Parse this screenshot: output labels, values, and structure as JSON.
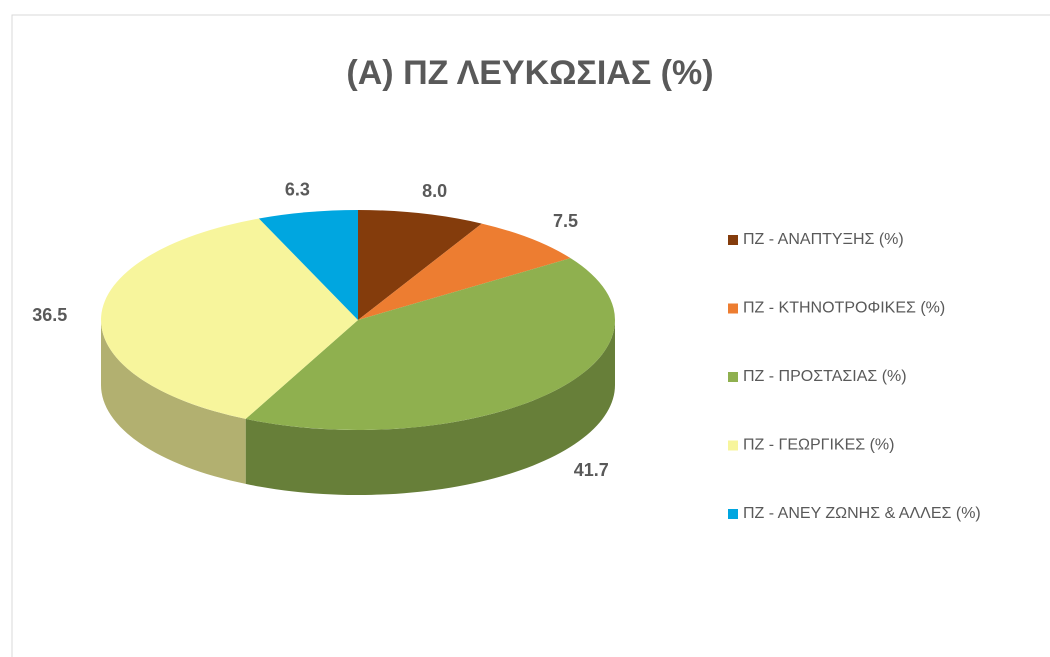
{
  "chart_data": {
    "type": "pie",
    "title": "(A) ΠΖ ΛΕΥΚΩΣΙΑΣ (%)",
    "categories": [
      "ΠΖ - ΑΝΑΠΤΥΞΗΣ (%)",
      "ΠΖ - ΚΤΗΝΟΤΡΟΦΙΚΕΣ (%)",
      "ΠΖ - ΠΡΟΣΤΑΣΙΑΣ (%)",
      "ΠΖ - ΓΕΩΡΓΙΚΕΣ (%)",
      "ΠΖ - ΑΝΕΥ ΖΩΝΗΣ & ΑΛΛΕΣ (%)"
    ],
    "values": [
      8.0,
      7.5,
      41.7,
      36.5,
      6.3
    ],
    "value_labels": [
      "8.0",
      "7.5",
      "41.7",
      "36.5",
      "6.3"
    ],
    "colors": [
      "#843c0c",
      "#ed7d31",
      "#8fb04f",
      "#f7f59c",
      "#00a6e0"
    ],
    "legend": "right"
  }
}
